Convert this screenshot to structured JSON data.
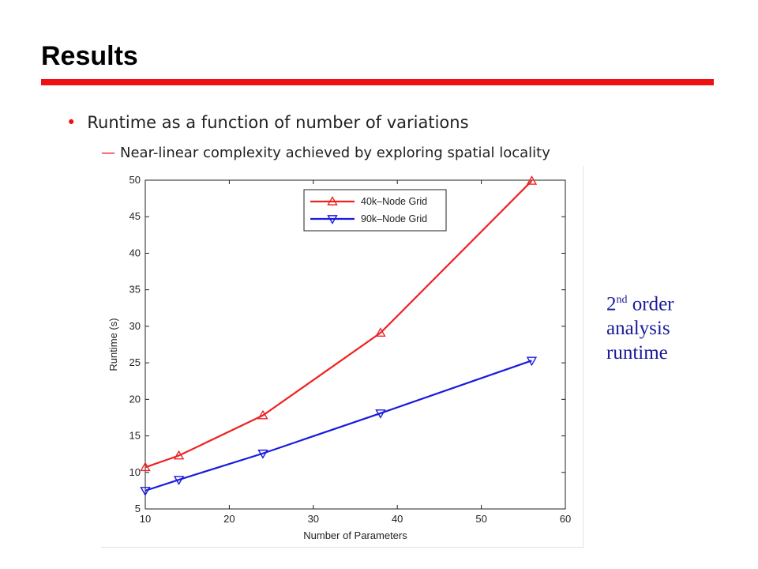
{
  "slide": {
    "title": "Results",
    "bullet1": "Runtime as a function of number of variations",
    "bullet2_dash": "—",
    "bullet2": "Near-linear complexity achieved by exploring spatial locality"
  },
  "side_note": {
    "line1_base": "2",
    "line1_sup": "nd",
    "line1_rest": " order",
    "line2": "analysis",
    "line3": "runtime"
  },
  "colors": {
    "accent": "#ee1111",
    "series1": "#ee2222",
    "series2": "#1a1adf",
    "note": "#1a1a9a"
  },
  "chart_data": {
    "type": "line",
    "xlabel": "Number of Parameters",
    "ylabel": "Runtime (s)",
    "xlim": [
      10,
      60
    ],
    "ylim": [
      5,
      50
    ],
    "xticks": [
      10,
      20,
      30,
      40,
      50,
      60
    ],
    "yticks": [
      5,
      10,
      15,
      20,
      25,
      30,
      35,
      40,
      45,
      50
    ],
    "grid": false,
    "legend_position": "top-center",
    "series": [
      {
        "name": "40k–Node Grid",
        "marker": "triangle-up",
        "color": "#ee2222",
        "x": [
          10,
          14,
          24,
          38,
          56
        ],
        "y": [
          10.7,
          12.3,
          17.8,
          29.1,
          49.9
        ]
      },
      {
        "name": "90k–Node Grid",
        "marker": "triangle-down",
        "color": "#1a1adf",
        "x": [
          10,
          14,
          24,
          38,
          56
        ],
        "y": [
          7.5,
          9.0,
          12.6,
          18.1,
          25.3
        ]
      }
    ]
  }
}
